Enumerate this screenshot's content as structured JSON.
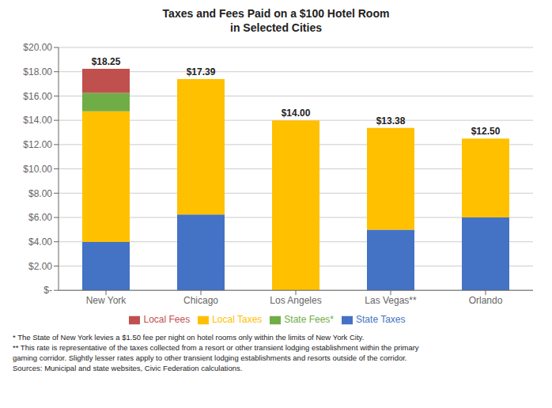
{
  "chart_data": {
    "type": "bar",
    "title": "Taxes and Fees Paid on a $100 Hotel Room",
    "subtitle": "in Selected Cities",
    "categories": [
      "New York",
      "Chicago",
      "Los Angeles",
      "Las Vegas**",
      "Orlando"
    ],
    "stacked": true,
    "series": [
      {
        "name": "State Taxes",
        "color": "#4472C4",
        "values": [
          3.99,
          6.25,
          0.0,
          5.0,
          6.0
        ]
      },
      {
        "name": "Local Taxes",
        "color": "#FFC000",
        "values": [
          10.76,
          11.14,
          14.0,
          8.38,
          6.5
        ]
      },
      {
        "name": "State Fees*",
        "color": "#70AD47",
        "values": [
          1.5,
          0.0,
          0.0,
          0.0,
          0.0
        ]
      },
      {
        "name": "Local Fees",
        "color": "#C0504D",
        "values": [
          2.0,
          0.0,
          0.0,
          0.0,
          0.0
        ]
      }
    ],
    "totals": [
      18.25,
      17.39,
      14.0,
      13.38,
      12.5
    ],
    "total_labels": [
      "$18.25",
      "$17.39",
      "$14.00",
      "$13.38",
      "$12.50"
    ],
    "ylim": [
      0,
      20
    ],
    "yticks": [
      {
        "value": 0,
        "label": "$-"
      },
      {
        "value": 2,
        "label": "$2.00"
      },
      {
        "value": 4,
        "label": "$4.00"
      },
      {
        "value": 6,
        "label": "$6.00"
      },
      {
        "value": 8,
        "label": "$8.00"
      },
      {
        "value": 10,
        "label": "$10.00"
      },
      {
        "value": 12,
        "label": "$12.00"
      },
      {
        "value": 14,
        "label": "$14.00"
      },
      {
        "value": 16,
        "label": "$16.00"
      },
      {
        "value": 18,
        "label": "$18.00"
      },
      {
        "value": 20,
        "label": "$20.00"
      }
    ],
    "grid": true,
    "legend": "bottom",
    "footnotes": [
      "* The State of New York levies a $1.50 fee per night on hotel rooms only within the limits of New York City.",
      "** This rate is representative of the taxes collected from a resort or other transient lodging establishment within the primary",
      "gaming corridor. Slightly lesser rates apply to other transient lodging establishments and resorts outside of the corridor.",
      "Sources: Municipal and state websites, Civic Federation calculations."
    ]
  }
}
